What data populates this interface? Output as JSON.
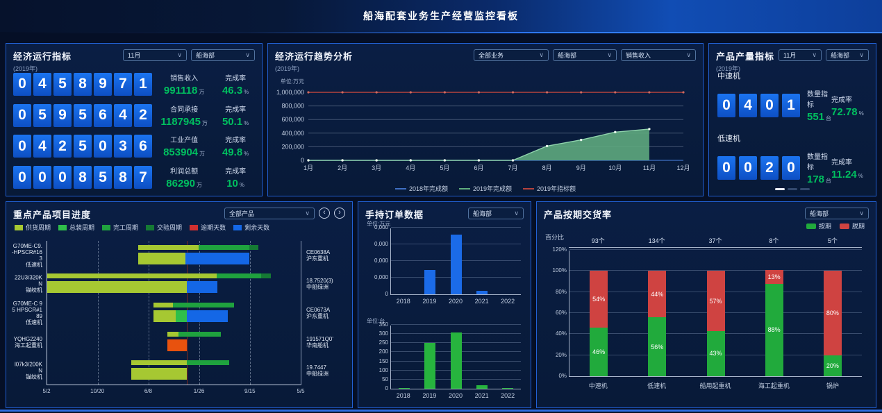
{
  "header": {
    "title": "船海配套业务生产经营监控看板"
  },
  "colors": {
    "accent_blue": "#1b74f0",
    "value_green": "#00bf5f",
    "panel_border": "#2160d4",
    "target_red": "#b5433e",
    "area_green": "#5fae7e",
    "line_blue_2018": "#3f6fc4",
    "bar_blue": "#1b6be8",
    "bar_green": "#27b43e",
    "ontime_green": "#21aa3c",
    "late_red": "#cf4341"
  },
  "panels": {
    "economic": {
      "title": "经济运行指标",
      "subtitle": "(2019年)",
      "filters": {
        "month": "11月",
        "dept": "船海部"
      },
      "rows": [
        {
          "digits": "0458971",
          "label": "销售收入",
          "value": "991118",
          "unit": "万",
          "rate_label": "完成率",
          "rate": "46.3",
          "rate_unit": "%"
        },
        {
          "digits": "0595642",
          "label": "合同承接",
          "value": "1187945",
          "unit": "万",
          "rate_label": "完成率",
          "rate": "50.1",
          "rate_unit": "%"
        },
        {
          "digits": "0425036",
          "label": "工业产值",
          "value": "853904",
          "unit": "万",
          "rate_label": "完成率",
          "rate": "49.8",
          "rate_unit": "%"
        },
        {
          "digits": "0008587",
          "label": "利润总额",
          "value": "86290",
          "unit": "万",
          "rate_label": "完成率",
          "rate": "10",
          "rate_unit": "%"
        }
      ]
    },
    "trend": {
      "title": "经济运行趋势分析",
      "subtitle": "(2019年)",
      "filters": [
        "全部业务",
        "船海部",
        "销售收入"
      ]
    },
    "production": {
      "title": "产品产量指标",
      "subtitle": "(2019年)",
      "filters": {
        "month": "11月",
        "dept": "船海部"
      },
      "sections": [
        {
          "name": "中速机",
          "digits": "0401",
          "qty_label": "数量指标",
          "qty": "551",
          "qty_unit": "台",
          "rate_label": "完成率",
          "rate": "72.78",
          "rate_unit": "%"
        },
        {
          "name": "低速机",
          "digits": "0020",
          "qty_label": "数量指标",
          "qty": "178",
          "qty_unit": "台",
          "rate_label": "完成率",
          "rate": "11.24",
          "rate_unit": "%"
        }
      ],
      "pagination_count": 3
    },
    "projects": {
      "title": "重点产品项目进度",
      "filter": "全部产品"
    },
    "orders": {
      "title": "手持订单数据",
      "filter": "船海部"
    },
    "delivery": {
      "title": "产品按期交货率",
      "filter": "船海部",
      "ylabel": "百分比"
    }
  },
  "chart_data": [
    {
      "id": "trend",
      "type": "area",
      "title": "经济运行趋势分析",
      "unit_label": "单位:万元",
      "x": [
        "1月",
        "2月",
        "3月",
        "4月",
        "5月",
        "6月",
        "7月",
        "8月",
        "9月",
        "10月",
        "11月",
        "12月"
      ],
      "ylim": [
        0,
        1000000
      ],
      "grid": true,
      "legend_position": "bottom",
      "yticks": [
        "0",
        "200,000",
        "400,000",
        "600,000",
        "800,000",
        "1,000,000"
      ],
      "series": [
        {
          "name": "2018年完成额",
          "type": "line",
          "color": "#3f6fc4",
          "values": [
            0,
            0,
            0,
            0,
            0,
            0,
            0,
            0,
            0,
            0,
            0,
            0
          ]
        },
        {
          "name": "2019年完成额",
          "type": "area",
          "color": "#5fae7e",
          "values": [
            0,
            0,
            0,
            0,
            0,
            0,
            0,
            210000,
            300000,
            415000,
            460000,
            null
          ]
        },
        {
          "name": "2019年指标额",
          "type": "line",
          "color": "#b5433e",
          "values": [
            1000000,
            1000000,
            1000000,
            1000000,
            1000000,
            1000000,
            1000000,
            1000000,
            1000000,
            1000000,
            1000000,
            1000000
          ]
        }
      ]
    },
    {
      "id": "orders_value",
      "type": "bar",
      "unit_label": "单位:万元",
      "categories": [
        "2018",
        "2019",
        "2020",
        "2021",
        "2022"
      ],
      "values": [
        0,
        73000,
        180000,
        10000,
        0
      ],
      "ylim": [
        0,
        200000
      ],
      "ytick_labels": [
        "0",
        "0,000",
        "0,000",
        "0,000",
        "0,000"
      ],
      "bar_color": "#1b6be8"
    },
    {
      "id": "orders_count",
      "type": "bar",
      "unit_label": "单位:台",
      "categories": [
        "2018",
        "2019",
        "2020",
        "2021",
        "2022"
      ],
      "values": [
        3,
        250,
        310,
        18,
        2
      ],
      "ylim": [
        0,
        350
      ],
      "ytick_labels": [
        "0",
        "50",
        "100",
        "150",
        "200",
        "250",
        "300",
        "350"
      ],
      "bar_color": "#27b43e"
    },
    {
      "id": "delivery",
      "type": "stacked_bar",
      "categories": [
        "中速机",
        "低速机",
        "船用起重机",
        "海工起重机",
        "锅炉"
      ],
      "counts": [
        "93个",
        "134个",
        "37个",
        "8个",
        "5个"
      ],
      "ylim": [
        0,
        120
      ],
      "ytick_labels": [
        "0%",
        "20%",
        "40%",
        "60%",
        "80%",
        "100%",
        "120%"
      ],
      "series": [
        {
          "name": "按期",
          "color": "#21aa3c",
          "values": [
            46,
            56,
            43,
            88,
            20
          ]
        },
        {
          "name": "脱期",
          "color": "#cf4341",
          "values": [
            54,
            44,
            57,
            13,
            80
          ]
        }
      ]
    },
    {
      "id": "projects",
      "type": "gantt",
      "legend": [
        {
          "label": "供货周期",
          "color": "#a6c832"
        },
        {
          "label": "总装周期",
          "color": "#2fbf4a"
        },
        {
          "label": "完工周期",
          "color": "#1fa23e"
        },
        {
          "label": "交验周期",
          "color": "#157a34"
        },
        {
          "label": "逾期天数",
          "color": "#d03030"
        },
        {
          "label": "剩余天数",
          "color": "#1467e6"
        }
      ],
      "xticks": [
        "5/2",
        "10/20",
        "6/8",
        "1/26",
        "9/15",
        "5/5"
      ],
      "today_pct": 55,
      "rows": [
        {
          "left": [
            "G70ME-C9.",
            "-HPSCR#16",
            "3",
            "低速机"
          ],
          "right": [
            "CE0638A",
            "沪东重机"
          ],
          "plan": [
            {
              "s": 35.8,
              "w": 23.8,
              "color": "#a6c832"
            },
            {
              "s": 59.6,
              "w": 20.0,
              "color": "#1fa23e"
            },
            {
              "s": 79.6,
              "w": 3.7,
              "color": "#157a34"
            }
          ],
          "actual": [
            {
              "s": 35.8,
              "w": 18.7,
              "color": "#a6c832"
            },
            {
              "s": 54.5,
              "w": 25.1,
              "color": "#1467e6"
            }
          ]
        },
        {
          "left": [
            "22U3/320K",
            "N",
            "锚绞机"
          ],
          "right": [
            "18.7520(3)",
            "中船绿洲"
          ],
          "plan": [
            {
              "s": 0,
              "w": 66.8,
              "color": "#a6c832"
            },
            {
              "s": 66.8,
              "w": 17.5,
              "color": "#1fa23e"
            },
            {
              "s": 84.3,
              "w": 3.8,
              "color": "#157a34"
            }
          ],
          "actual": [
            {
              "s": 0,
              "w": 55.0,
              "color": "#a6c832"
            },
            {
              "s": 55.0,
              "w": 12.0,
              "color": "#1467e6"
            }
          ]
        },
        {
          "left": [
            "G70ME-C 9",
            "5 HPSCR#1",
            "89",
            "低速机"
          ],
          "right": [
            "CE0673A",
            "沪东重机"
          ],
          "plan": [
            {
              "s": 41.8,
              "w": 7.7,
              "color": "#a6c832"
            },
            {
              "s": 49.5,
              "w": 24.2,
              "color": "#1fa23e"
            }
          ],
          "actual": [
            {
              "s": 41.8,
              "w": 8.8,
              "color": "#a6c832"
            },
            {
              "s": 50.6,
              "w": 4.5,
              "color": "#2fbf4a"
            },
            {
              "s": 55.1,
              "w": 16.2,
              "color": "#1467e6"
            }
          ]
        },
        {
          "left": [
            "YQHG2240",
            "海工起重机"
          ],
          "right": [
            "191571Q0'",
            "华南船机"
          ],
          "plan": [
            {
              "s": 47.3,
              "w": 4.5,
              "color": "#a6c832"
            },
            {
              "s": 51.8,
              "w": 16.8,
              "color": "#1fa23e"
            }
          ],
          "actual": [
            {
              "s": 47.3,
              "w": 7.7,
              "color": "#e8520e"
            }
          ]
        },
        {
          "left": [
            "l07k3/200K",
            "N",
            "锚绞机"
          ],
          "right": [
            "19.7447",
            "中船绿洲"
          ],
          "plan": [
            {
              "s": 33.2,
              "w": 21.8,
              "color": "#a6c832"
            },
            {
              "s": 55.0,
              "w": 16.8,
              "color": "#1fa23e"
            }
          ],
          "actual": [
            {
              "s": 33.2,
              "w": 21.8,
              "color": "#a6c832"
            }
          ]
        }
      ]
    }
  ]
}
